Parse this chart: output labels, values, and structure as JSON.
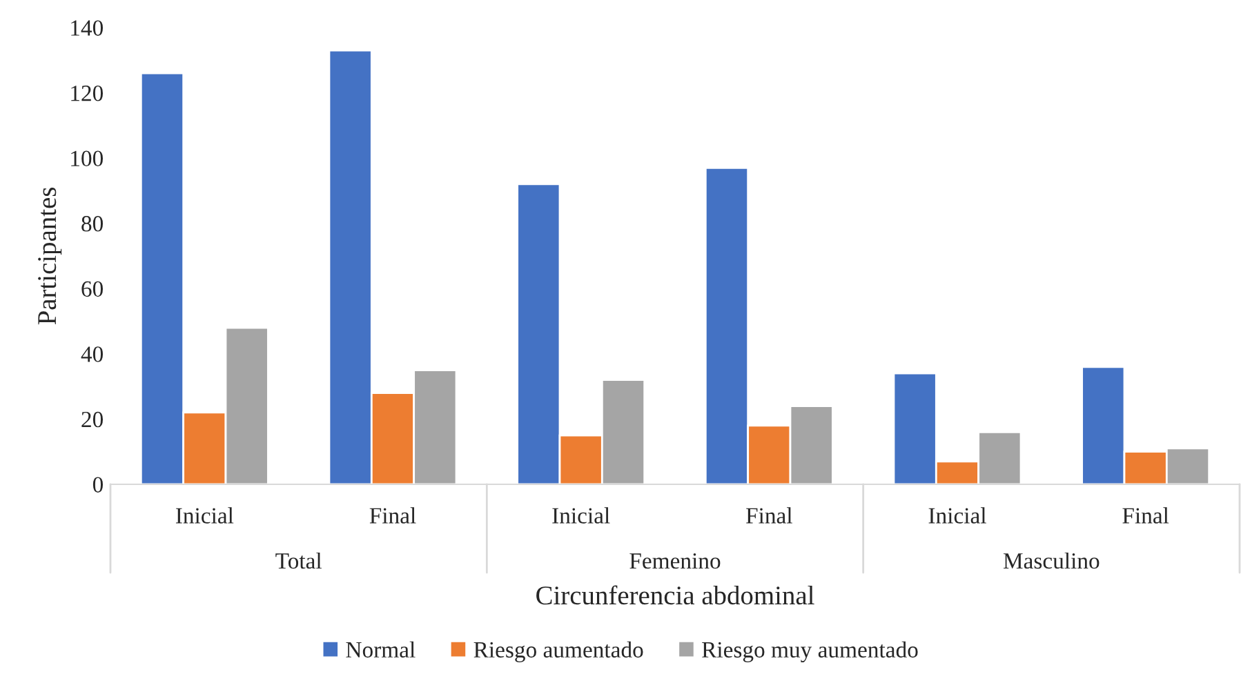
{
  "chart_data": {
    "type": "bar",
    "xlabel": "Circunferencia abdominal",
    "ylabel": "Participantes",
    "categories": [
      "Inicial",
      "Final",
      "Inicial",
      "Final",
      "Inicial",
      "Final"
    ],
    "series": [
      {
        "name": "Normal",
        "color": "#4472c4",
        "values": [
          126,
          133,
          92,
          97,
          34,
          36
        ]
      },
      {
        "name": "Riesgo aumentado",
        "color": "#ed7d31",
        "values": [
          22,
          28,
          15,
          18,
          7,
          10
        ]
      },
      {
        "name": "Riesgo muy aumentado",
        "color": "#a5a5a5",
        "values": [
          48,
          35,
          32,
          24,
          16,
          11
        ]
      }
    ],
    "annotations": [
      "Total",
      "Femenino",
      "Masculino"
    ],
    "ylim": [
      0,
      140
    ],
    "yticks": [
      0,
      20,
      40,
      60,
      80,
      100,
      120,
      140
    ],
    "grid": false,
    "legend": "bottom"
  }
}
